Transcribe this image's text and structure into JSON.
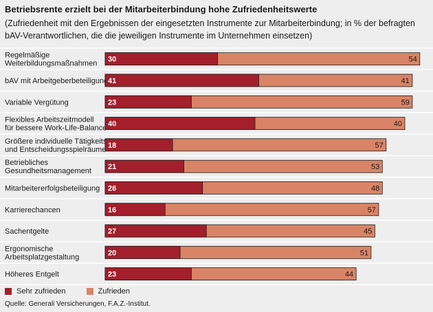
{
  "title": "Betriebsrente erzielt bei der Mitarbeiterbindung hohe Zufriedenheitswerte",
  "subtitle": "(Zufriedenheit mit den Ergebnissen der eingesetzten Instrumente zur Mitarbeiterbindung; in % der befragten bAV-Verantwortlichen, die die jeweiligen Instrumente im Unternehmen einsetzen)",
  "source": "Quelle: Generali Versicherungen, F.A.Z.-Institut.",
  "colors": {
    "sehr_zufrieden": "#a31f2b",
    "zufrieden": "#d98466",
    "background": "#eeeeee"
  },
  "chart_data": {
    "type": "bar",
    "orientation": "horizontal",
    "stacked": true,
    "categories": [
      [
        "Regelmäßige",
        "Weiterbildungsmaßnahmen"
      ],
      [
        "bAV mit Arbeitgeberbeteiligung"
      ],
      [
        "Variable Vergütung"
      ],
      [
        "Flexibles Arbeitszeitmodell",
        "für bessere Work-Life-Balance"
      ],
      [
        "Größere individuelle Tätigkeits-",
        "und Entscheidungsspielräume"
      ],
      [
        "Betriebliches",
        "Gesundheitsmanagement"
      ],
      [
        "Mitarbeitererfolgsbeteiligung"
      ],
      [
        "Karrierechancen"
      ],
      [
        "Sachentgelte"
      ],
      [
        "Ergonomische",
        "Arbeitsplatzgestaltung"
      ],
      [
        "Höheres Entgelt"
      ]
    ],
    "series": [
      {
        "name": "Sehr zufrieden",
        "values": [
          30,
          41,
          23,
          40,
          18,
          21,
          26,
          16,
          27,
          20,
          23
        ]
      },
      {
        "name": "Zufrieden",
        "values": [
          54,
          41,
          59,
          40,
          57,
          53,
          48,
          57,
          45,
          51,
          44
        ]
      }
    ],
    "xlim": [
      0,
      84
    ],
    "grid": false,
    "legend": "bottom-left"
  }
}
